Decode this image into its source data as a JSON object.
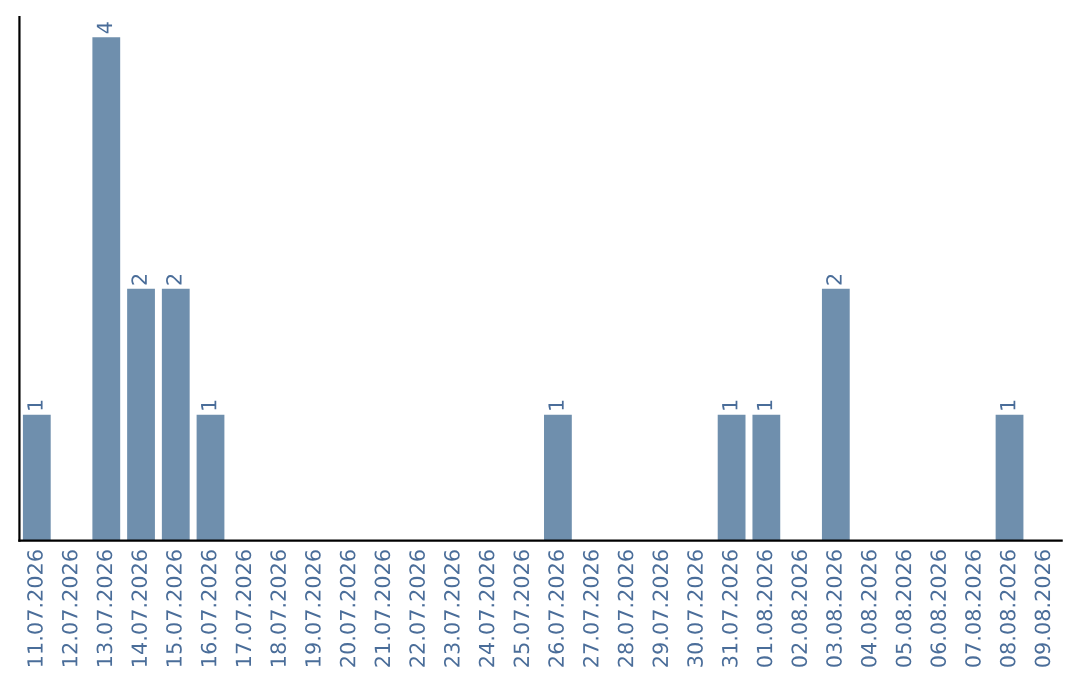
{
  "chart_data": {
    "type": "bar",
    "categories": [
      "11.07.2026",
      "12.07.2026",
      "13.07.2026",
      "14.07.2026",
      "15.07.2026",
      "16.07.2026",
      "17.07.2026",
      "18.07.2026",
      "19.07.2026",
      "20.07.2026",
      "21.07.2026",
      "22.07.2026",
      "23.07.2026",
      "24.07.2026",
      "25.07.2026",
      "26.07.2026",
      "27.07.2026",
      "28.07.2026",
      "29.07.2026",
      "30.07.2026",
      "31.07.2026",
      "01.08.2026",
      "02.08.2026",
      "03.08.2026",
      "04.08.2026",
      "05.08.2026",
      "06.08.2026",
      "07.08.2026",
      "08.08.2026",
      "09.08.2026"
    ],
    "values": [
      1,
      0,
      4,
      2,
      2,
      1,
      0,
      0,
      0,
      0,
      0,
      0,
      0,
      0,
      0,
      1,
      0,
      0,
      0,
      0,
      1,
      1,
      0,
      2,
      0,
      0,
      0,
      0,
      1,
      0
    ],
    "value_labels": [
      "1",
      null,
      "4",
      "2",
      "2",
      "1",
      null,
      null,
      null,
      null,
      null,
      null,
      null,
      null,
      null,
      "1",
      null,
      null,
      null,
      null,
      "1",
      "1",
      null,
      "2",
      null,
      null,
      null,
      null,
      "1",
      null
    ],
    "color": "#6f8fad",
    "grid": false,
    "legend": false
  }
}
